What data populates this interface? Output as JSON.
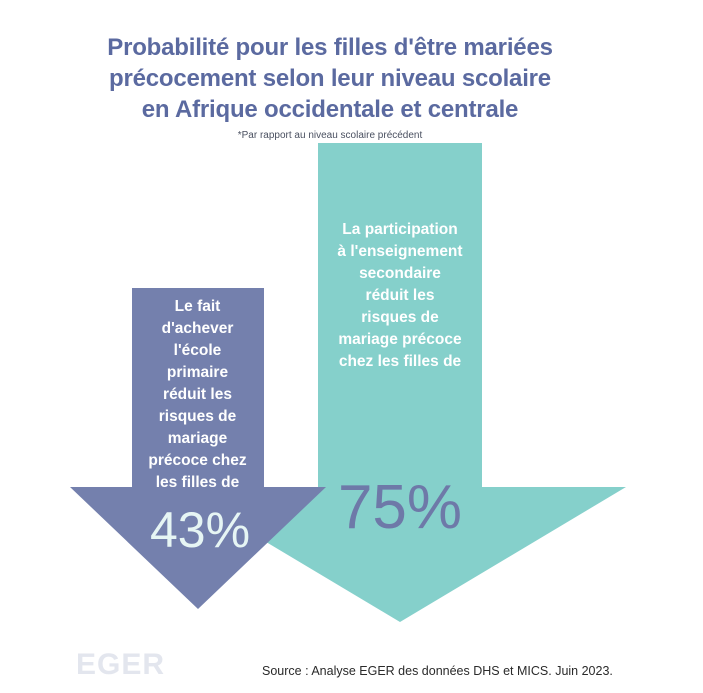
{
  "title_lines": [
    "Probabilité pour les filles d'être mariées",
    "précocement selon leur niveau scolaire",
    "en Afrique occidentale et centrale"
  ],
  "footnote": "*Par rapport au niveau scolaire précédent",
  "colors": {
    "title": "#5b6aa0",
    "primary": "#7480ad",
    "secondary": "#85d0cb",
    "primary_pct": "#e6f5f4",
    "secondary_pct": "#6e79a8",
    "logo": "#e3e6ee"
  },
  "chart_data": {
    "type": "bar",
    "categories": [
      "primaire",
      "secondaire"
    ],
    "values": [
      43,
      75
    ],
    "unit": "%",
    "series": [
      {
        "name": "primaire",
        "label_lines": [
          "Le fait",
          "d'achever",
          "l'école",
          "primaire",
          "réduit les",
          "risques de",
          "mariage",
          "précoce chez",
          "les filles de"
        ],
        "value_label": "43%"
      },
      {
        "name": "secondaire",
        "label_lines": [
          "La participation",
          "à l'enseignement",
          "secondaire",
          "réduit les",
          "risques de",
          "mariage précoce",
          "chez les filles de"
        ],
        "value_label": "75%"
      }
    ]
  },
  "logo_text": "EGER",
  "source": "Source : Analyse EGER des données DHS et MICS. Juin 2023."
}
